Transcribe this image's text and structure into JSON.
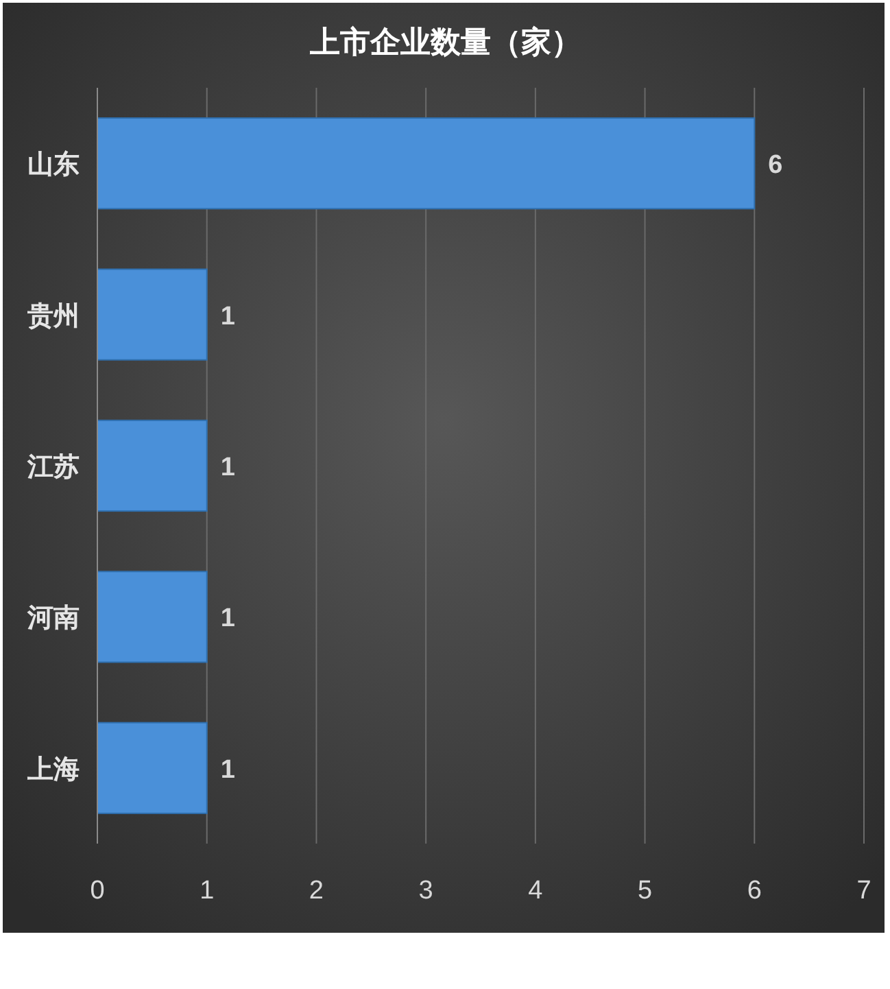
{
  "chart_data": {
    "type": "bar",
    "orientation": "horizontal",
    "title": "上市企业数量（家）",
    "categories": [
      "山东",
      "贵州",
      "江苏",
      "河南",
      "上海"
    ],
    "values": [
      6,
      1,
      1,
      1,
      1
    ],
    "color": "#4a90d9",
    "xlim": [
      0,
      7
    ],
    "xticks": [
      0,
      1,
      2,
      3,
      4,
      5,
      6,
      7
    ],
    "grid": "x",
    "data_labels": true
  }
}
